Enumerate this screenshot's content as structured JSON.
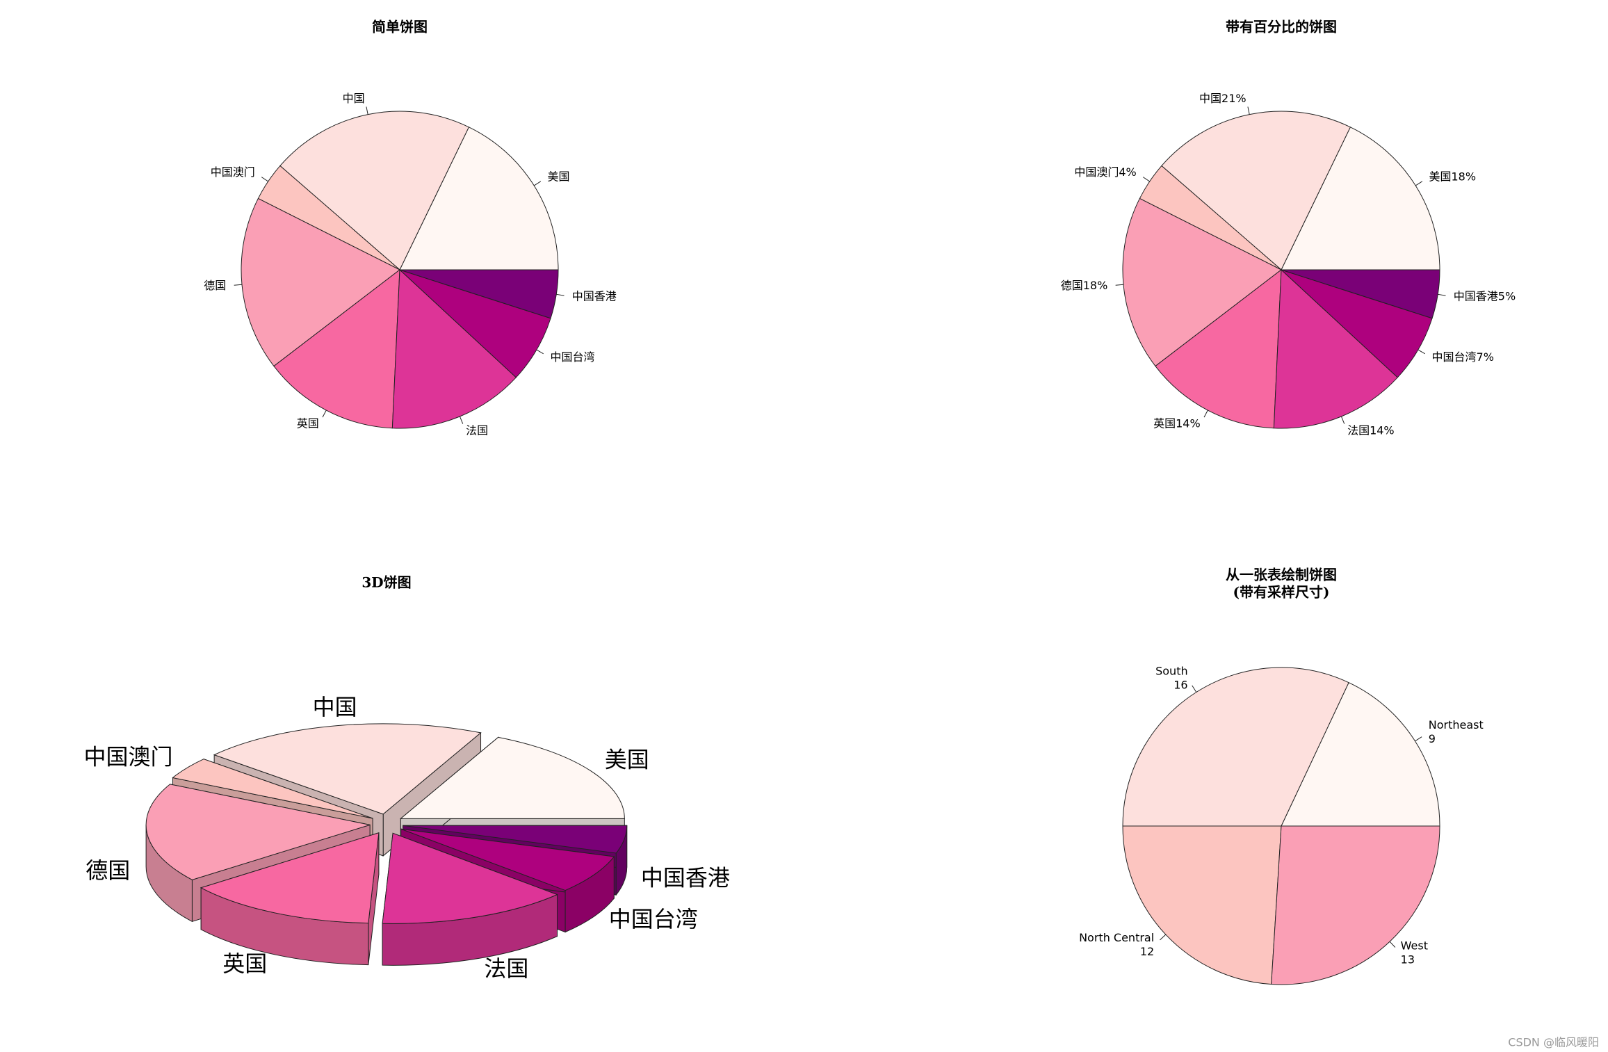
{
  "chart_data": [
    {
      "type": "pie",
      "title": "简单饼图",
      "categories": [
        "美国",
        "中国",
        "中国澳门",
        "德国",
        "英国",
        "法国",
        "中国台湾",
        "中国香港"
      ],
      "values": [
        18,
        21,
        4,
        18,
        14,
        14,
        7,
        5
      ],
      "colors": [
        "#FFF7F3",
        "#FDE0DD",
        "#FCC5C0",
        "#FA9FB5",
        "#F768A1",
        "#DD3497",
        "#AE017E",
        "#7A0177"
      ]
    },
    {
      "type": "pie",
      "title": "带有百分比的饼图",
      "labels": [
        "美国18%",
        "中国21%",
        "中国澳门4%",
        "德国18%",
        "英国14%",
        "法国14%",
        "中国台湾7%",
        "中国香港5%"
      ],
      "values": [
        18,
        21,
        4,
        18,
        14,
        14,
        7,
        5
      ],
      "colors": [
        "#FFF7F3",
        "#FDE0DD",
        "#FCC5C0",
        "#FA9FB5",
        "#F768A1",
        "#DD3497",
        "#AE017E",
        "#7A0177"
      ]
    },
    {
      "type": "pie3d",
      "title": "3D饼图",
      "categories": [
        "美国",
        "中国",
        "中国澳门",
        "德国",
        "英国",
        "法国",
        "中国台湾",
        "中国香港"
      ],
      "values": [
        18,
        21,
        4,
        18,
        14,
        14,
        7,
        5
      ],
      "colors": [
        "#FFF7F3",
        "#FDE0DD",
        "#FCC5C0",
        "#FA9FB5",
        "#F768A1",
        "#DD3497",
        "#AE017E",
        "#7A0177"
      ]
    },
    {
      "type": "pie",
      "title": "从一张表绘制饼图",
      "subtitle": "(带有采样尺寸)",
      "categories": [
        "Northeast",
        "South",
        "North Central",
        "West"
      ],
      "values": [
        9,
        16,
        12,
        13
      ],
      "colors": [
        "#FFF7F3",
        "#FDE0DD",
        "#FCC5C0",
        "#FA9FB5"
      ]
    }
  ],
  "watermark": "CSDN @临风暖阳"
}
